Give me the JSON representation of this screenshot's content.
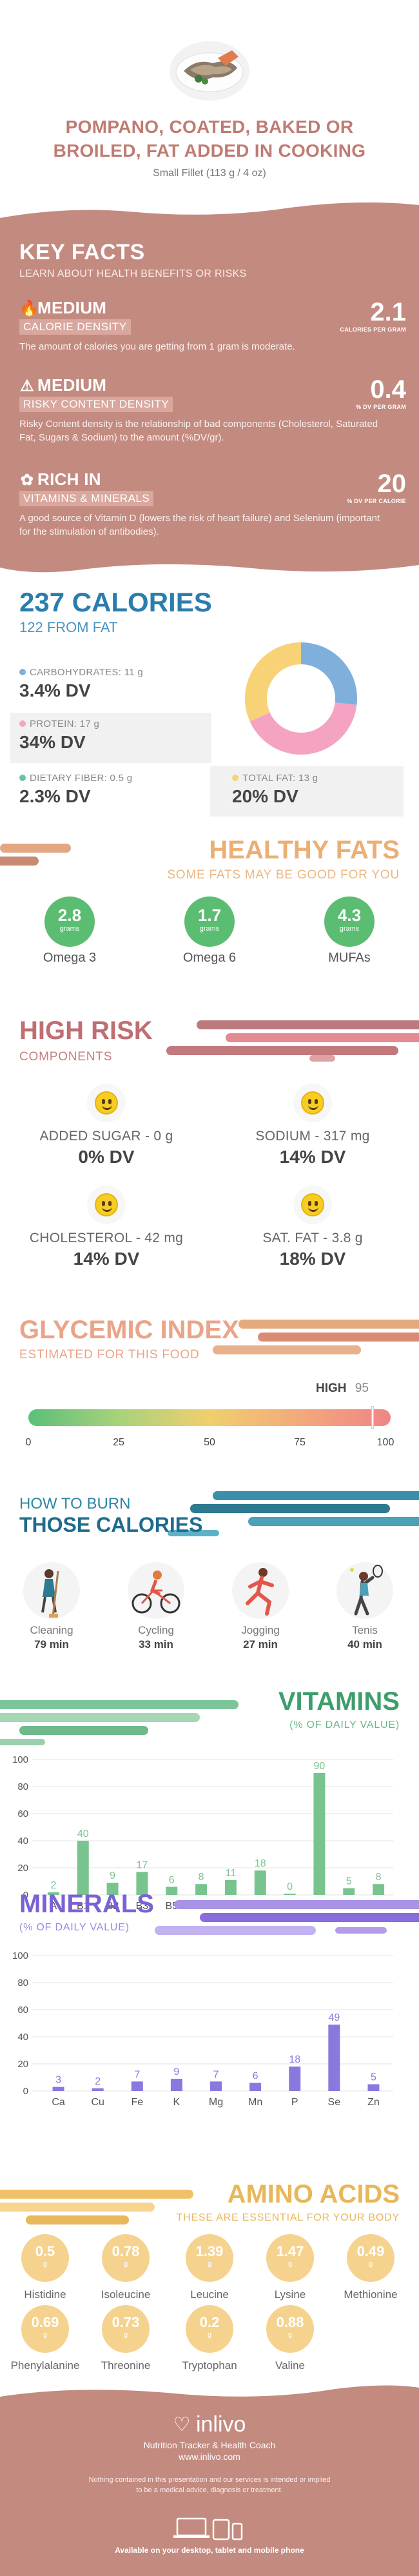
{
  "header": {
    "title_line1": "POMPANO, COATED, BAKED OR",
    "title_line2": "BROILED, FAT ADDED IN COOKING",
    "serving": "Small Fillet (113 g / 4 oz)"
  },
  "key_facts": {
    "title": "KEY FACTS",
    "subtitle": "LEARN ABOUT HEALTH BENEFITS OR RISKS",
    "items": [
      {
        "icon": "flame-icon",
        "level": "MEDIUM",
        "label": "CALORIE DENSITY",
        "value": "2.1",
        "unit": "CALORIES PER GRAM",
        "desc": "The amount of calories you are getting from 1 gram is moderate."
      },
      {
        "icon": "warning-icon",
        "level": "MEDIUM",
        "label": "RISKY CONTENT DENSITY",
        "value": "0.4",
        "unit": "% DV PER GRAM",
        "desc": "Risky Content density is the relationship of bad components (Cholesterol, Saturated Fat, Sugars & Sodium) to the amount (%DV/gr)."
      },
      {
        "icon": "leaf-icon",
        "level": "RICH IN",
        "label": "VITAMINS & MINERALS",
        "value": "20",
        "unit": "% DV PER CALORIE",
        "desc": "A good source of Vitamin D (lowers the risk of heart failure) and Selenium (important for the stimulation of antibodies)."
      }
    ]
  },
  "calories": {
    "title": "237 CALORIES",
    "from_fat": "122 FROM FAT",
    "nutrients": [
      {
        "label": "CARBOHYDRATES: 11 g",
        "dv": "3.4% DV",
        "color": "#7fb0dd"
      },
      {
        "label": "PROTEIN: 17 g",
        "dv": "34% DV",
        "color": "#f5a3c3"
      },
      {
        "label": "DIETARY FIBER: 0.5 g",
        "dv": "2.3% DV",
        "color": "#6cc39b"
      },
      {
        "label": "TOTAL FAT: 13 g",
        "dv": "20% DV",
        "color": "#f7d277"
      }
    ],
    "donut": [
      {
        "name": "carbohydrates",
        "value": 11,
        "color": "#7fb0dd"
      },
      {
        "name": "protein",
        "value": 17,
        "color": "#f5a3c3"
      },
      {
        "name": "fat",
        "value": 13,
        "color": "#f7d277"
      }
    ]
  },
  "healthy_fats": {
    "title": "HEALTHY FATS",
    "subtitle": "SOME FATS MAY BE GOOD FOR YOU",
    "items": [
      {
        "value": "2.8",
        "unit": "grams",
        "name": "Omega 3"
      },
      {
        "value": "1.7",
        "unit": "grams",
        "name": "Omega 6"
      },
      {
        "value": "4.3",
        "unit": "grams",
        "name": "MUFAs"
      }
    ]
  },
  "high_risk": {
    "title": "HIGH RISK",
    "subtitle": "COMPONENTS",
    "items": [
      {
        "name": "ADDED SUGAR - 0 g",
        "dv": "0% DV"
      },
      {
        "name": "SODIUM - 317 mg",
        "dv": "14% DV"
      },
      {
        "name": "CHOLESTEROL - 42 mg",
        "dv": "14% DV"
      },
      {
        "name": "SAT. FAT - 3.8 g",
        "dv": "18% DV"
      }
    ]
  },
  "glycemic": {
    "title": "GLYCEMIC INDEX",
    "subtitle": "ESTIMATED FOR THIS FOOD",
    "level": "HIGH",
    "value": 95,
    "value_text": "95",
    "ticks": [
      "0",
      "25",
      "50",
      "75",
      "100"
    ]
  },
  "burn": {
    "title_line1": "HOW TO BURN",
    "title_line2": "THOSE CALORIES",
    "items": [
      {
        "name": "Cleaning",
        "minutes": "79 min",
        "icon": "cleaning-icon"
      },
      {
        "name": "Cycling",
        "minutes": "33 min",
        "icon": "cycling-icon"
      },
      {
        "name": "Jogging",
        "minutes": "27 min",
        "icon": "jogging-icon"
      },
      {
        "name": "Tenis",
        "minutes": "40 min",
        "icon": "tennis-icon"
      }
    ]
  },
  "chart_data": [
    {
      "type": "bar",
      "title": "VITAMINS",
      "subtitle": "(% OF DAILY VALUE)",
      "categories": [
        "A",
        "B1",
        "B2",
        "B3",
        "B5",
        "B6",
        "B9",
        "B12",
        "C",
        "D",
        "E",
        "K"
      ],
      "values": [
        2,
        40,
        9,
        17,
        6,
        8,
        11,
        18,
        0,
        90,
        5,
        8
      ],
      "yticks": [
        0,
        20,
        40,
        60,
        80,
        100
      ],
      "ylim": [
        0,
        100
      ],
      "color": "#79c48e",
      "label_color": "#79c48e"
    },
    {
      "type": "bar",
      "title": "MINERALS",
      "subtitle": "(% OF DAILY VALUE)",
      "categories": [
        "Ca",
        "Cu",
        "Fe",
        "K",
        "Mg",
        "Mn",
        "P",
        "Se",
        "Zn"
      ],
      "values": [
        3,
        2,
        7,
        9,
        7,
        6,
        18,
        49,
        5
      ],
      "yticks": [
        0,
        20,
        40,
        60,
        80,
        100
      ],
      "ylim": [
        0,
        100
      ],
      "color": "#8a78de",
      "label_color": "#8a78de"
    }
  ],
  "amino": {
    "title": "AMINO ACIDS",
    "subtitle": "THESE ARE ESSENTIAL FOR YOUR BODY",
    "items": [
      {
        "value": "0.5",
        "unit": "g",
        "name": "Histidine"
      },
      {
        "value": "0.78",
        "unit": "g",
        "name": "Isoleucine"
      },
      {
        "value": "1.39",
        "unit": "g",
        "name": "Leucine"
      },
      {
        "value": "1.47",
        "unit": "g",
        "name": "Lysine"
      },
      {
        "value": "0.49",
        "unit": "g",
        "name": "Methionine"
      },
      {
        "value": "0.69",
        "unit": "g",
        "name": "Phenylalanine"
      },
      {
        "value": "0.73",
        "unit": "g",
        "name": "Threonine"
      },
      {
        "value": "0.2",
        "unit": "g",
        "name": "Tryptophan"
      },
      {
        "value": "0.88",
        "unit": "g",
        "name": "Valine"
      }
    ]
  },
  "footer": {
    "brand": "inlivo",
    "tagline": "Nutrition Tracker & Health Coach",
    "url": "www.inlivo.com",
    "disclaimer_line1": "Nothing contained in this presentation and our services is intended or implied",
    "disclaimer_line2": "to be a medical advice, diagnosis or treatment.",
    "available": "Available on your desktop, tablet and mobile phone"
  }
}
